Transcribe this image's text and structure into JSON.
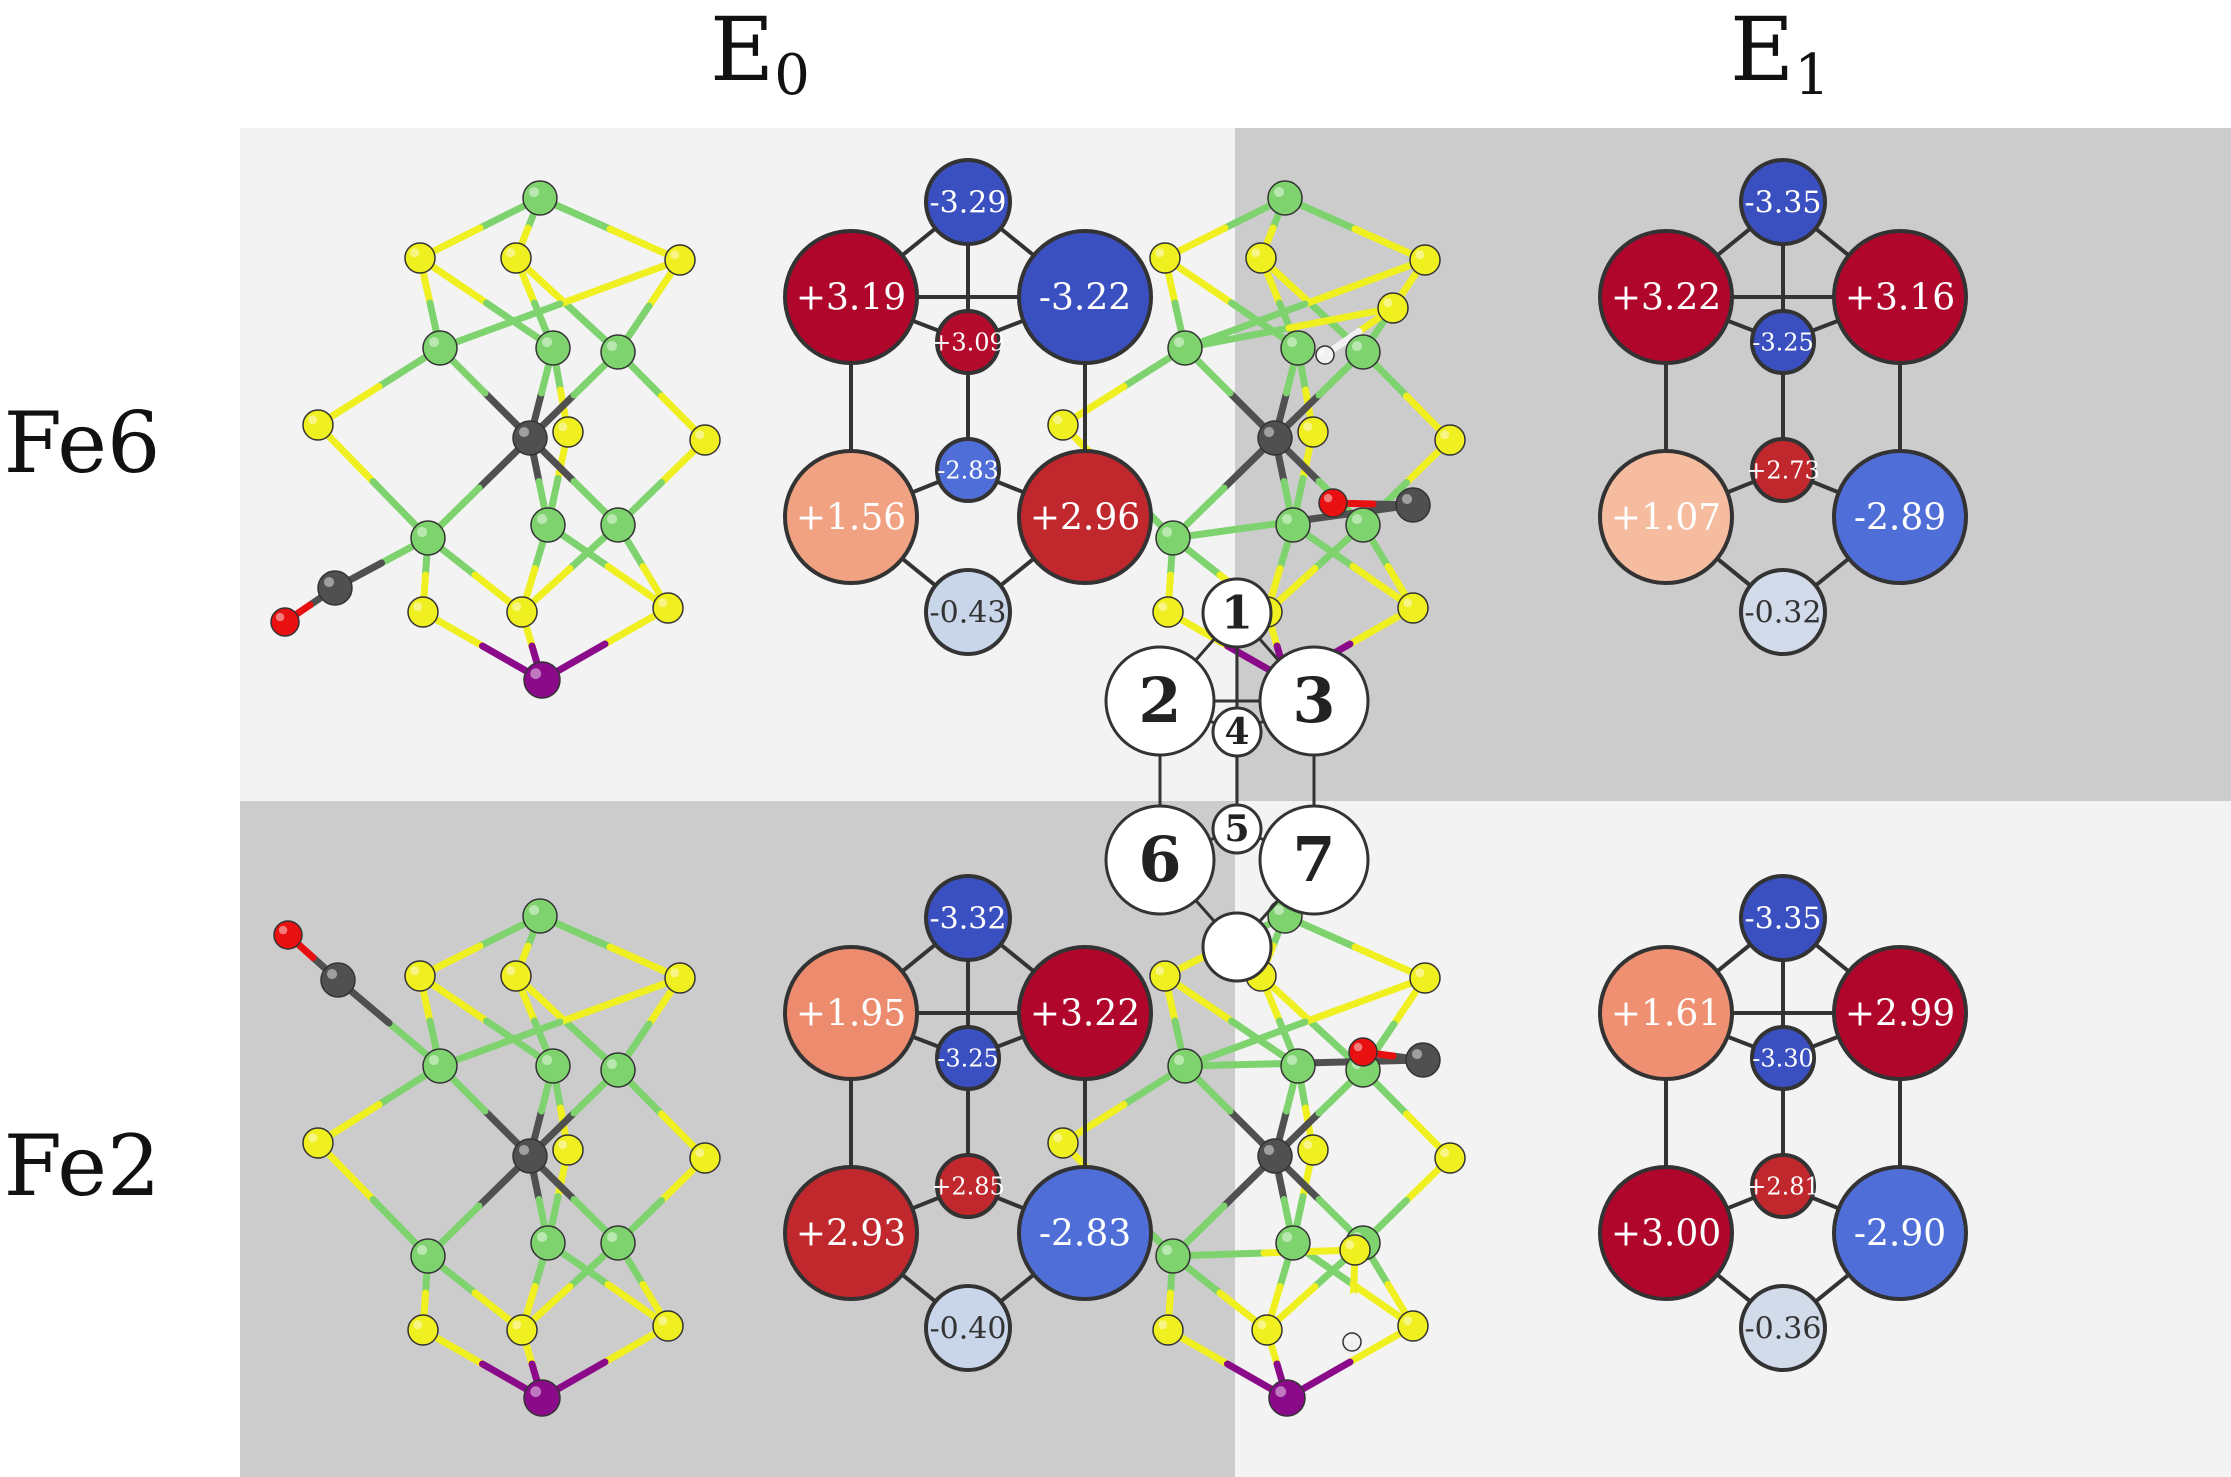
{
  "columns": [
    {
      "base": "E",
      "sub": "0"
    },
    {
      "base": "E",
      "sub": "1"
    }
  ],
  "rows": [
    "Fe6",
    "Fe2"
  ],
  "atom_colors": {
    "fe": "#7ed36e",
    "s": "#f0ef20",
    "c": "#505050",
    "o": "#e81010",
    "mo": "#8a0a8a",
    "h": "#f2f2f2"
  },
  "panels": [
    {
      "id": "fe6-e0",
      "bg": "#f3f3f3",
      "ligand": "co-left-low",
      "spins": [
        {
          "site": 1,
          "text": "-3.29",
          "color": "#3a4fc0"
        },
        {
          "site": 2,
          "text": "+3.19",
          "color": "#b0062b"
        },
        {
          "site": 3,
          "text": "-3.22",
          "color": "#3a4fc0"
        },
        {
          "site": 4,
          "text": "+3.09",
          "color": "#b40a2c"
        },
        {
          "site": 5,
          "text": "-2.83",
          "color": "#4f6ed8"
        },
        {
          "site": 6,
          "text": "+1.56",
          "color": "#f1a283"
        },
        {
          "site": 7,
          "text": "+2.96",
          "color": "#c0282e"
        },
        {
          "site": 8,
          "text": "-0.43",
          "color": "#c9d6ea"
        }
      ]
    },
    {
      "id": "fe6-e1",
      "bg": "#cccccc",
      "ligand": "co-plus-sh",
      "spins": [
        {
          "site": 1,
          "text": "-3.35",
          "color": "#3a4fc0"
        },
        {
          "site": 2,
          "text": "+3.22",
          "color": "#b0062b"
        },
        {
          "site": 3,
          "text": "+3.16",
          "color": "#b0062b"
        },
        {
          "site": 4,
          "text": "-3.25",
          "color": "#3a4fc0"
        },
        {
          "site": 5,
          "text": "+2.73",
          "color": "#c0282e"
        },
        {
          "site": 6,
          "text": "+1.07",
          "color": "#f5bca0"
        },
        {
          "site": 7,
          "text": "-2.89",
          "color": "#4f6ed8"
        },
        {
          "site": 8,
          "text": "-0.32",
          "color": "#d1dbea"
        }
      ]
    },
    {
      "id": "fe2-e0",
      "bg": "#cccccc",
      "ligand": "co-left-high",
      "spins": [
        {
          "site": 1,
          "text": "-3.32",
          "color": "#3a4fc0"
        },
        {
          "site": 2,
          "text": "+1.95",
          "color": "#ec8b6e"
        },
        {
          "site": 3,
          "text": "+3.22",
          "color": "#b0062b"
        },
        {
          "site": 4,
          "text": "-3.25",
          "color": "#3a4fc0"
        },
        {
          "site": 5,
          "text": "+2.85",
          "color": "#c0282e"
        },
        {
          "site": 6,
          "text": "+2.93",
          "color": "#c0282e"
        },
        {
          "site": 7,
          "text": "-2.83",
          "color": "#4f6ed8"
        },
        {
          "site": 8,
          "text": "-0.40",
          "color": "#c9d6ea"
        }
      ]
    },
    {
      "id": "fe2-e1",
      "bg": "#f3f3f3",
      "ligand": "co-plus-sh-low",
      "spins": [
        {
          "site": 1,
          "text": "-3.35",
          "color": "#3a4fc0"
        },
        {
          "site": 2,
          "text": "+1.61",
          "color": "#ef9073"
        },
        {
          "site": 3,
          "text": "+2.99",
          "color": "#b0062b"
        },
        {
          "site": 4,
          "text": "-3.30",
          "color": "#3a4fc0"
        },
        {
          "site": 5,
          "text": "+2.81",
          "color": "#c0282e"
        },
        {
          "site": 6,
          "text": "+3.00",
          "color": "#b0062b"
        },
        {
          "site": 7,
          "text": "-2.90",
          "color": "#4f6ed8"
        },
        {
          "site": 8,
          "text": "-0.36",
          "color": "#d1dbea"
        }
      ]
    }
  ],
  "key_labels": [
    "1",
    "2",
    "3",
    "4",
    "5",
    "6",
    "7",
    ""
  ]
}
